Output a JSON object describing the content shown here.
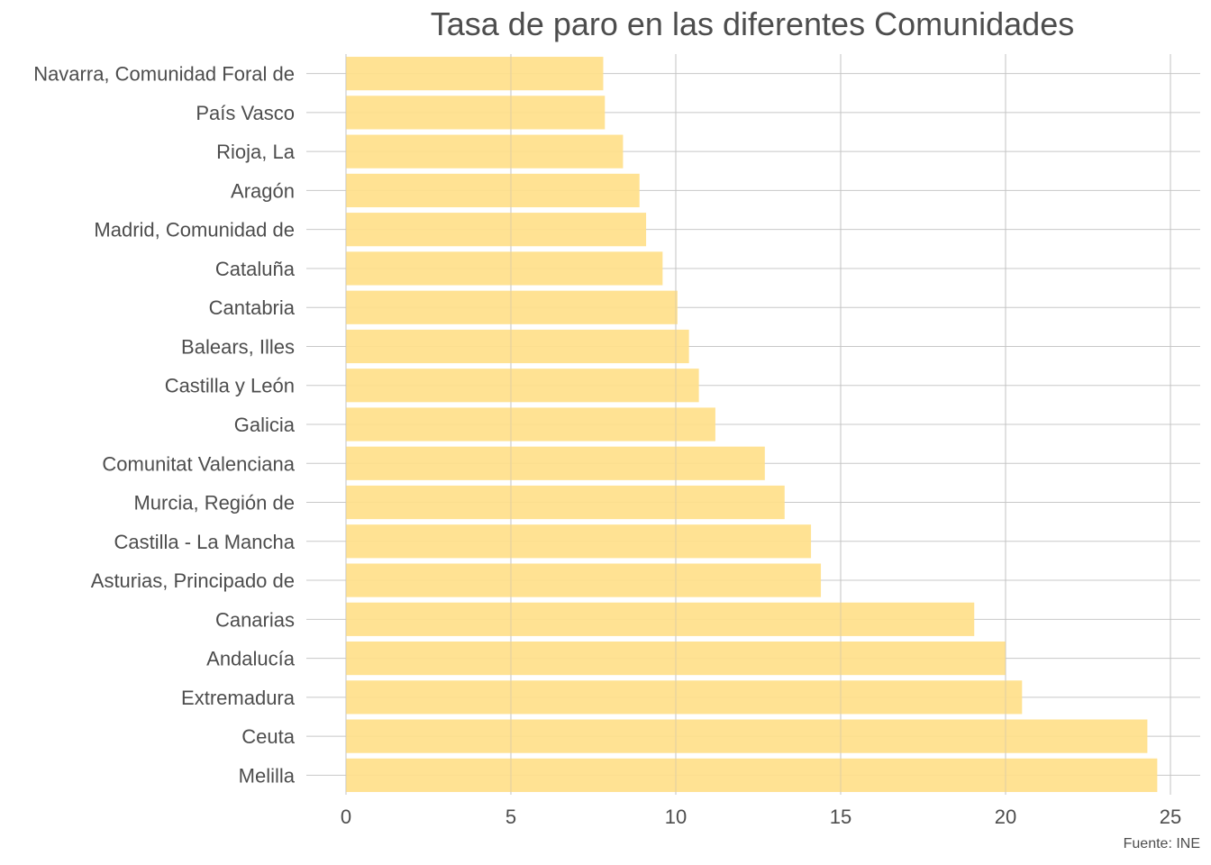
{
  "chart_data": {
    "type": "bar",
    "orientation": "horizontal",
    "title": "Tasa de paro en las diferentes Comunidades",
    "caption": "Fuente: INE",
    "xlabel": "",
    "ylabel": "",
    "xlim": [
      0,
      26
    ],
    "x_ticks": [
      0,
      5,
      10,
      15,
      20,
      25
    ],
    "grid": true,
    "bar_color": "#FFE08A",
    "categories": [
      "Navarra, Comunidad Foral de",
      "País Vasco",
      "Rioja, La",
      "Aragón",
      "Madrid, Comunidad de",
      "Cataluña",
      "Cantabria",
      "Balears, Illes",
      "Castilla y León",
      "Galicia",
      "Comunitat Valenciana",
      "Murcia, Región de",
      "Castilla - La Mancha",
      "Asturias, Principado de",
      "Canarias",
      "Andalucía",
      "Extremadura",
      "Ceuta",
      "Melilla"
    ],
    "values": [
      7.8,
      7.85,
      8.4,
      8.9,
      9.1,
      9.6,
      10.05,
      10.4,
      10.7,
      11.2,
      12.7,
      13.3,
      14.1,
      14.4,
      19.05,
      20.0,
      20.5,
      24.3,
      24.6
    ]
  }
}
